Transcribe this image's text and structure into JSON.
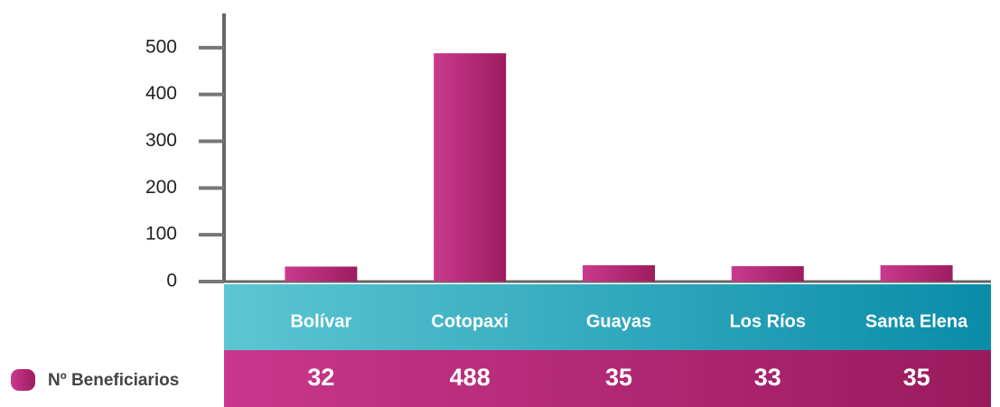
{
  "chart_data": {
    "type": "bar",
    "categories": [
      "Bolívar",
      "Cotopaxi",
      "Guayas",
      "Los Ríos",
      "Santa Elena"
    ],
    "series": [
      {
        "name": "Nº Beneficiarios",
        "color": "#b8287a",
        "values": [
          32,
          488,
          35,
          33,
          35
        ]
      }
    ],
    "ylim": [
      0,
      573
    ],
    "yticks": [
      0,
      100,
      200,
      300,
      400,
      500
    ],
    "grid": false
  }
}
